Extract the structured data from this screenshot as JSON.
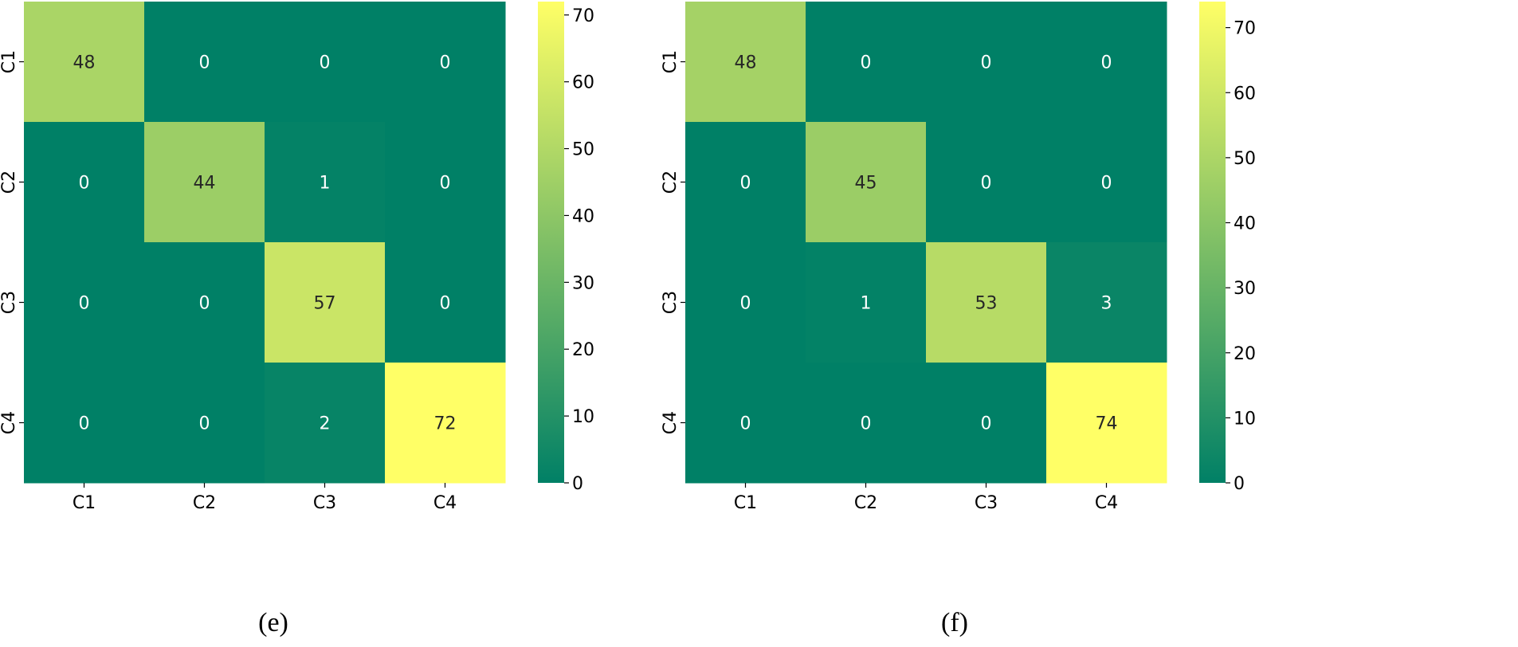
{
  "chart_data": [
    {
      "type": "heatmap",
      "caption": "(e)",
      "x_categories": [
        "C1",
        "C2",
        "C3",
        "C4"
      ],
      "y_categories": [
        "C1",
        "C2",
        "C3",
        "C4"
      ],
      "matrix": [
        [
          48,
          0,
          0,
          0
        ],
        [
          0,
          44,
          1,
          0
        ],
        [
          0,
          0,
          57,
          0
        ],
        [
          0,
          0,
          2,
          72
        ]
      ],
      "colorbar": {
        "min": 0,
        "max": 72,
        "ticks": [
          0,
          10,
          20,
          30,
          40,
          50,
          60,
          70
        ]
      },
      "colormap": "summer",
      "colors": {
        "low": "#008066",
        "high": "#ffff66"
      }
    },
    {
      "type": "heatmap",
      "caption": "(f)",
      "x_categories": [
        "C1",
        "C2",
        "C3",
        "C4"
      ],
      "y_categories": [
        "C1",
        "C2",
        "C3",
        "C4"
      ],
      "matrix": [
        [
          48,
          0,
          0,
          0
        ],
        [
          0,
          45,
          0,
          0
        ],
        [
          0,
          1,
          53,
          3
        ],
        [
          0,
          0,
          0,
          74
        ]
      ],
      "colorbar": {
        "min": 0,
        "max": 74,
        "ticks": [
          0,
          10,
          20,
          30,
          40,
          50,
          60,
          70
        ]
      },
      "colormap": "summer",
      "colors": {
        "low": "#008066",
        "high": "#ffff66"
      }
    }
  ]
}
